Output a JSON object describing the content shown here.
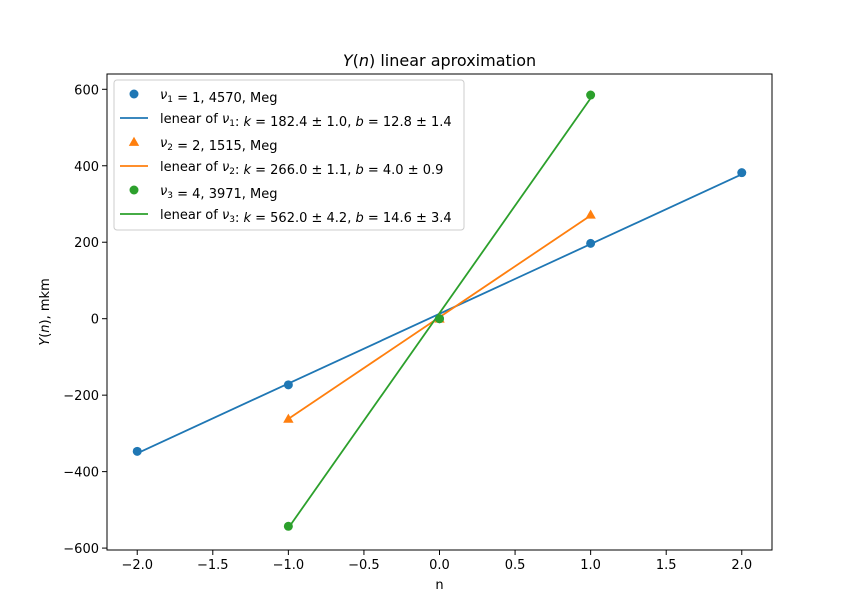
{
  "chart_data": {
    "type": "scatter",
    "title": "Y(n) linear aproximation",
    "title_parts": [
      {
        "text": "Y",
        "italic": true
      },
      {
        "text": "(",
        "italic": false
      },
      {
        "text": "n",
        "italic": true
      },
      {
        "text": ") linear aproximation",
        "italic": false
      }
    ],
    "xlabel": "n",
    "ylabel": "Y(n), mkm",
    "xlim": [
      -2.2,
      2.2
    ],
    "ylim": [
      -605,
      640
    ],
    "xticks": [
      -2.0,
      -1.5,
      -1.0,
      -0.5,
      0.0,
      0.5,
      1.0,
      1.5,
      2.0
    ],
    "xtick_labels": [
      "−2.0",
      "−1.5",
      "−1.0",
      "−0.5",
      "0.0",
      "0.5",
      "1.0",
      "1.5",
      "2.0"
    ],
    "yticks": [
      -600,
      -400,
      -200,
      0,
      200,
      400,
      600
    ],
    "ytick_labels": [
      "−600",
      "−400",
      "−200",
      "0",
      "200",
      "400",
      "600"
    ],
    "grid": false,
    "legend_position": "top-left",
    "series": [
      {
        "name": "ν1 = 1, 4570, Meg",
        "marker": "circle",
        "color": "#1f77b4",
        "x": [
          -2,
          -1,
          0,
          1,
          2
        ],
        "y": [
          -347,
          -173,
          0,
          197,
          382
        ],
        "fit": {
          "k": 182.4,
          "b": 12.8,
          "x_range": [
            -2,
            2
          ],
          "label": "lenear of ν1: k = 182.4 ± 1.0, b = 12.8 ± 1.4"
        }
      },
      {
        "name": "ν2 = 2, 1515, Meg",
        "marker": "triangle",
        "color": "#ff7f0e",
        "x": [
          -1,
          0,
          1
        ],
        "y": [
          -262,
          0,
          272
        ],
        "fit": {
          "k": 266.0,
          "b": 4.0,
          "x_range": [
            -1,
            1
          ],
          "label": "lenear of ν2: k = 266.0 ± 1.1, b = 4.0 ± 0.9"
        }
      },
      {
        "name": "ν3 = 4, 3971, Meg",
        "marker": "circle",
        "color": "#2ca02c",
        "x": [
          -1,
          0,
          1
        ],
        "y": [
          -543,
          0,
          585
        ],
        "fit": {
          "k": 562.0,
          "b": 14.6,
          "x_range": [
            -1,
            1
          ],
          "label": "lenear of ν3: k = 562.0 ± 4.2, b = 14.6 ± 3.4"
        }
      }
    ],
    "legend": [
      {
        "kind": "marker",
        "series": 0,
        "parts": [
          {
            "text": "ν",
            "italic": true
          },
          {
            "text": "1",
            "sub": true
          },
          {
            "text": " = 1, 4570",
            "italic": false
          },
          {
            "text": ", Meg",
            "italic": false
          }
        ]
      },
      {
        "kind": "line",
        "series": 0,
        "parts": [
          {
            "text": "lenear of ",
            "italic": false
          },
          {
            "text": "ν",
            "italic": true
          },
          {
            "text": "1",
            "sub": true
          },
          {
            "text": ": ",
            "italic": false
          },
          {
            "text": "k",
            "italic": true
          },
          {
            "text": " = 182.4 ± 1.0, ",
            "italic": false
          },
          {
            "text": "b",
            "italic": true
          },
          {
            "text": " = 12.8 ± 1.4",
            "italic": false
          }
        ]
      },
      {
        "kind": "marker",
        "series": 1,
        "parts": [
          {
            "text": "ν",
            "italic": true
          },
          {
            "text": "2",
            "sub": true
          },
          {
            "text": " = 2, 1515",
            "italic": false
          },
          {
            "text": ", Meg",
            "italic": false
          }
        ]
      },
      {
        "kind": "line",
        "series": 1,
        "parts": [
          {
            "text": "lenear of ",
            "italic": false
          },
          {
            "text": "ν",
            "italic": true
          },
          {
            "text": "2",
            "sub": true
          },
          {
            "text": ": ",
            "italic": false
          },
          {
            "text": "k",
            "italic": true
          },
          {
            "text": " = 266.0 ± 1.1, ",
            "italic": false
          },
          {
            "text": "b",
            "italic": true
          },
          {
            "text": " = 4.0 ± 0.9",
            "italic": false
          }
        ]
      },
      {
        "kind": "marker",
        "series": 2,
        "parts": [
          {
            "text": "ν",
            "italic": true
          },
          {
            "text": "3",
            "sub": true
          },
          {
            "text": " = 4, 3971",
            "italic": false
          },
          {
            "text": ", Meg",
            "italic": false
          }
        ]
      },
      {
        "kind": "line",
        "series": 2,
        "parts": [
          {
            "text": "lenear of ",
            "italic": false
          },
          {
            "text": "ν",
            "italic": true
          },
          {
            "text": "3",
            "sub": true
          },
          {
            "text": ": ",
            "italic": false
          },
          {
            "text": "k",
            "italic": true
          },
          {
            "text": " = 562.0 ± 4.2, ",
            "italic": false
          },
          {
            "text": "b",
            "italic": true
          },
          {
            "text": " = 14.6 ± 3.4",
            "italic": false
          }
        ]
      }
    ]
  }
}
